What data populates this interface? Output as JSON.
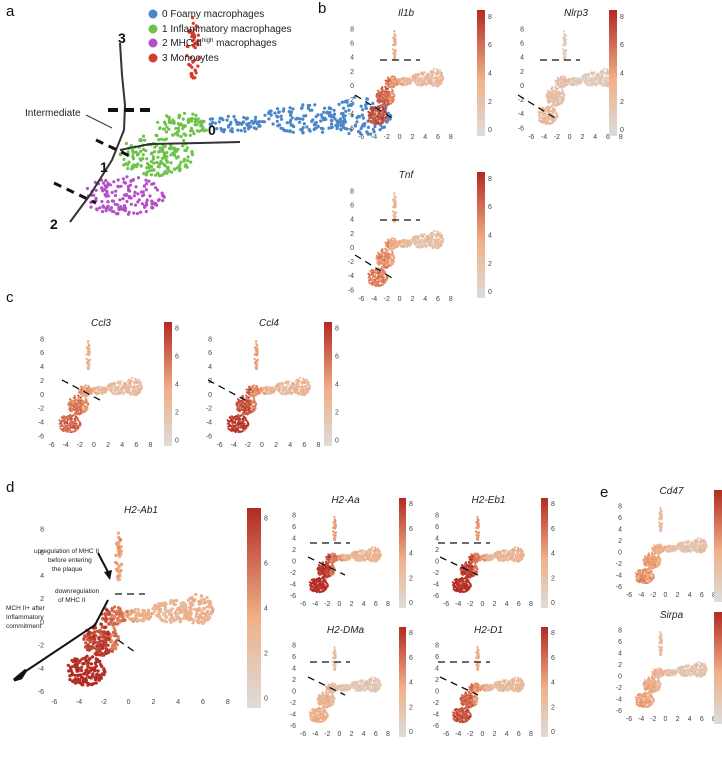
{
  "colors": {
    "foamy": "#4a86c8",
    "inflammatory": "#6cc24a",
    "mhc": "#b44fc8",
    "monocytes": "#d43a2e",
    "low": "#d9d9d9",
    "mid": "#f0a77a",
    "high": "#b22a22"
  },
  "panels": {
    "a": "a",
    "b": "b",
    "c": "c",
    "d": "d",
    "e": "e"
  },
  "chart_data": [
    {
      "type": "scatter",
      "panel": "a",
      "title": "",
      "legend_position": "top-right",
      "legend": [
        {
          "id": "0",
          "label": "0 Foamy macrophages"
        },
        {
          "id": "1",
          "label": "1 Inflammatory macrophages"
        },
        {
          "id": "2",
          "label_main": "2 MHC-II",
          "label_sup": "high",
          "label_tail": " macrophages"
        },
        {
          "id": "3",
          "label": "3 Monocytes"
        }
      ],
      "cluster_labels": [
        "0",
        "1",
        "2",
        "3"
      ],
      "annotation": "Intermediate"
    },
    {
      "type": "scatter",
      "panel": "feature_plots",
      "x_ticks": [
        "-6",
        "-4",
        "-2",
        "0",
        "2",
        "4",
        "6",
        "8"
      ],
      "y_ticks": [
        "8",
        "6",
        "4",
        "2",
        "0",
        "-2",
        "-4",
        "-6"
      ],
      "colorbar_ticks": [
        "8",
        "6",
        "4",
        "2",
        "0"
      ],
      "genes": {
        "il1b": "Il1b",
        "nlrp3": "Nlrp3",
        "tnf": "Tnf",
        "ccl3": "Ccl3",
        "ccl4": "Ccl4",
        "h2ab1": "H2-Ab1",
        "h2aa": "H2-Aa",
        "h2eb1": "H2-Eb1",
        "h2dma": "H2-DMa",
        "h2d1": "H2-D1",
        "cd47": "Cd47",
        "sirpa": "Sirpa"
      }
    }
  ],
  "annotations_d": {
    "upreg_1": "upregulation of MHC II",
    "upreg_2": "before entering",
    "upreg_3": "the plaque",
    "downreg_1": "downregulation",
    "downreg_2": "of MHC II",
    "mch_1": "MCH II+ after",
    "mch_2": "Inflammatory",
    "mch_3": "commitment"
  }
}
